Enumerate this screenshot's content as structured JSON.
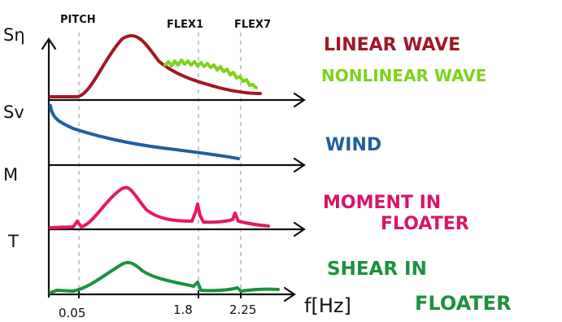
{
  "header": {
    "markers": [
      "PITCH",
      "FLEX1",
      "FLEX7"
    ]
  },
  "axes": {
    "labels": [
      "Sη",
      "Sv",
      "M",
      "T"
    ],
    "x_axis_label": "f[Hz]",
    "x_ticks": [
      "0.05",
      "1.8",
      "2.25"
    ]
  },
  "legend": {
    "linear_wave": {
      "text": "LINEAR WAVE",
      "color": "#a01824"
    },
    "nonlinear_wave": {
      "text": "NONLINEAR WAVE",
      "color": "#7ed31a"
    },
    "wind": {
      "text": "WIND",
      "color": "#1f5f9e"
    },
    "moment_line1": {
      "text": "MOMENT IN",
      "color": "#d8146a"
    },
    "moment_line2": {
      "text": "FLOATER",
      "color": "#d8146a"
    },
    "shear_line1": {
      "text": "SHEAR IN",
      "color": "#1c9140"
    },
    "shear_line2": {
      "text": "FLOATER",
      "color": "#1c9140"
    }
  },
  "colors": {
    "axes_ink": "#111111",
    "dashed_guides": "#b8b8b8"
  }
}
